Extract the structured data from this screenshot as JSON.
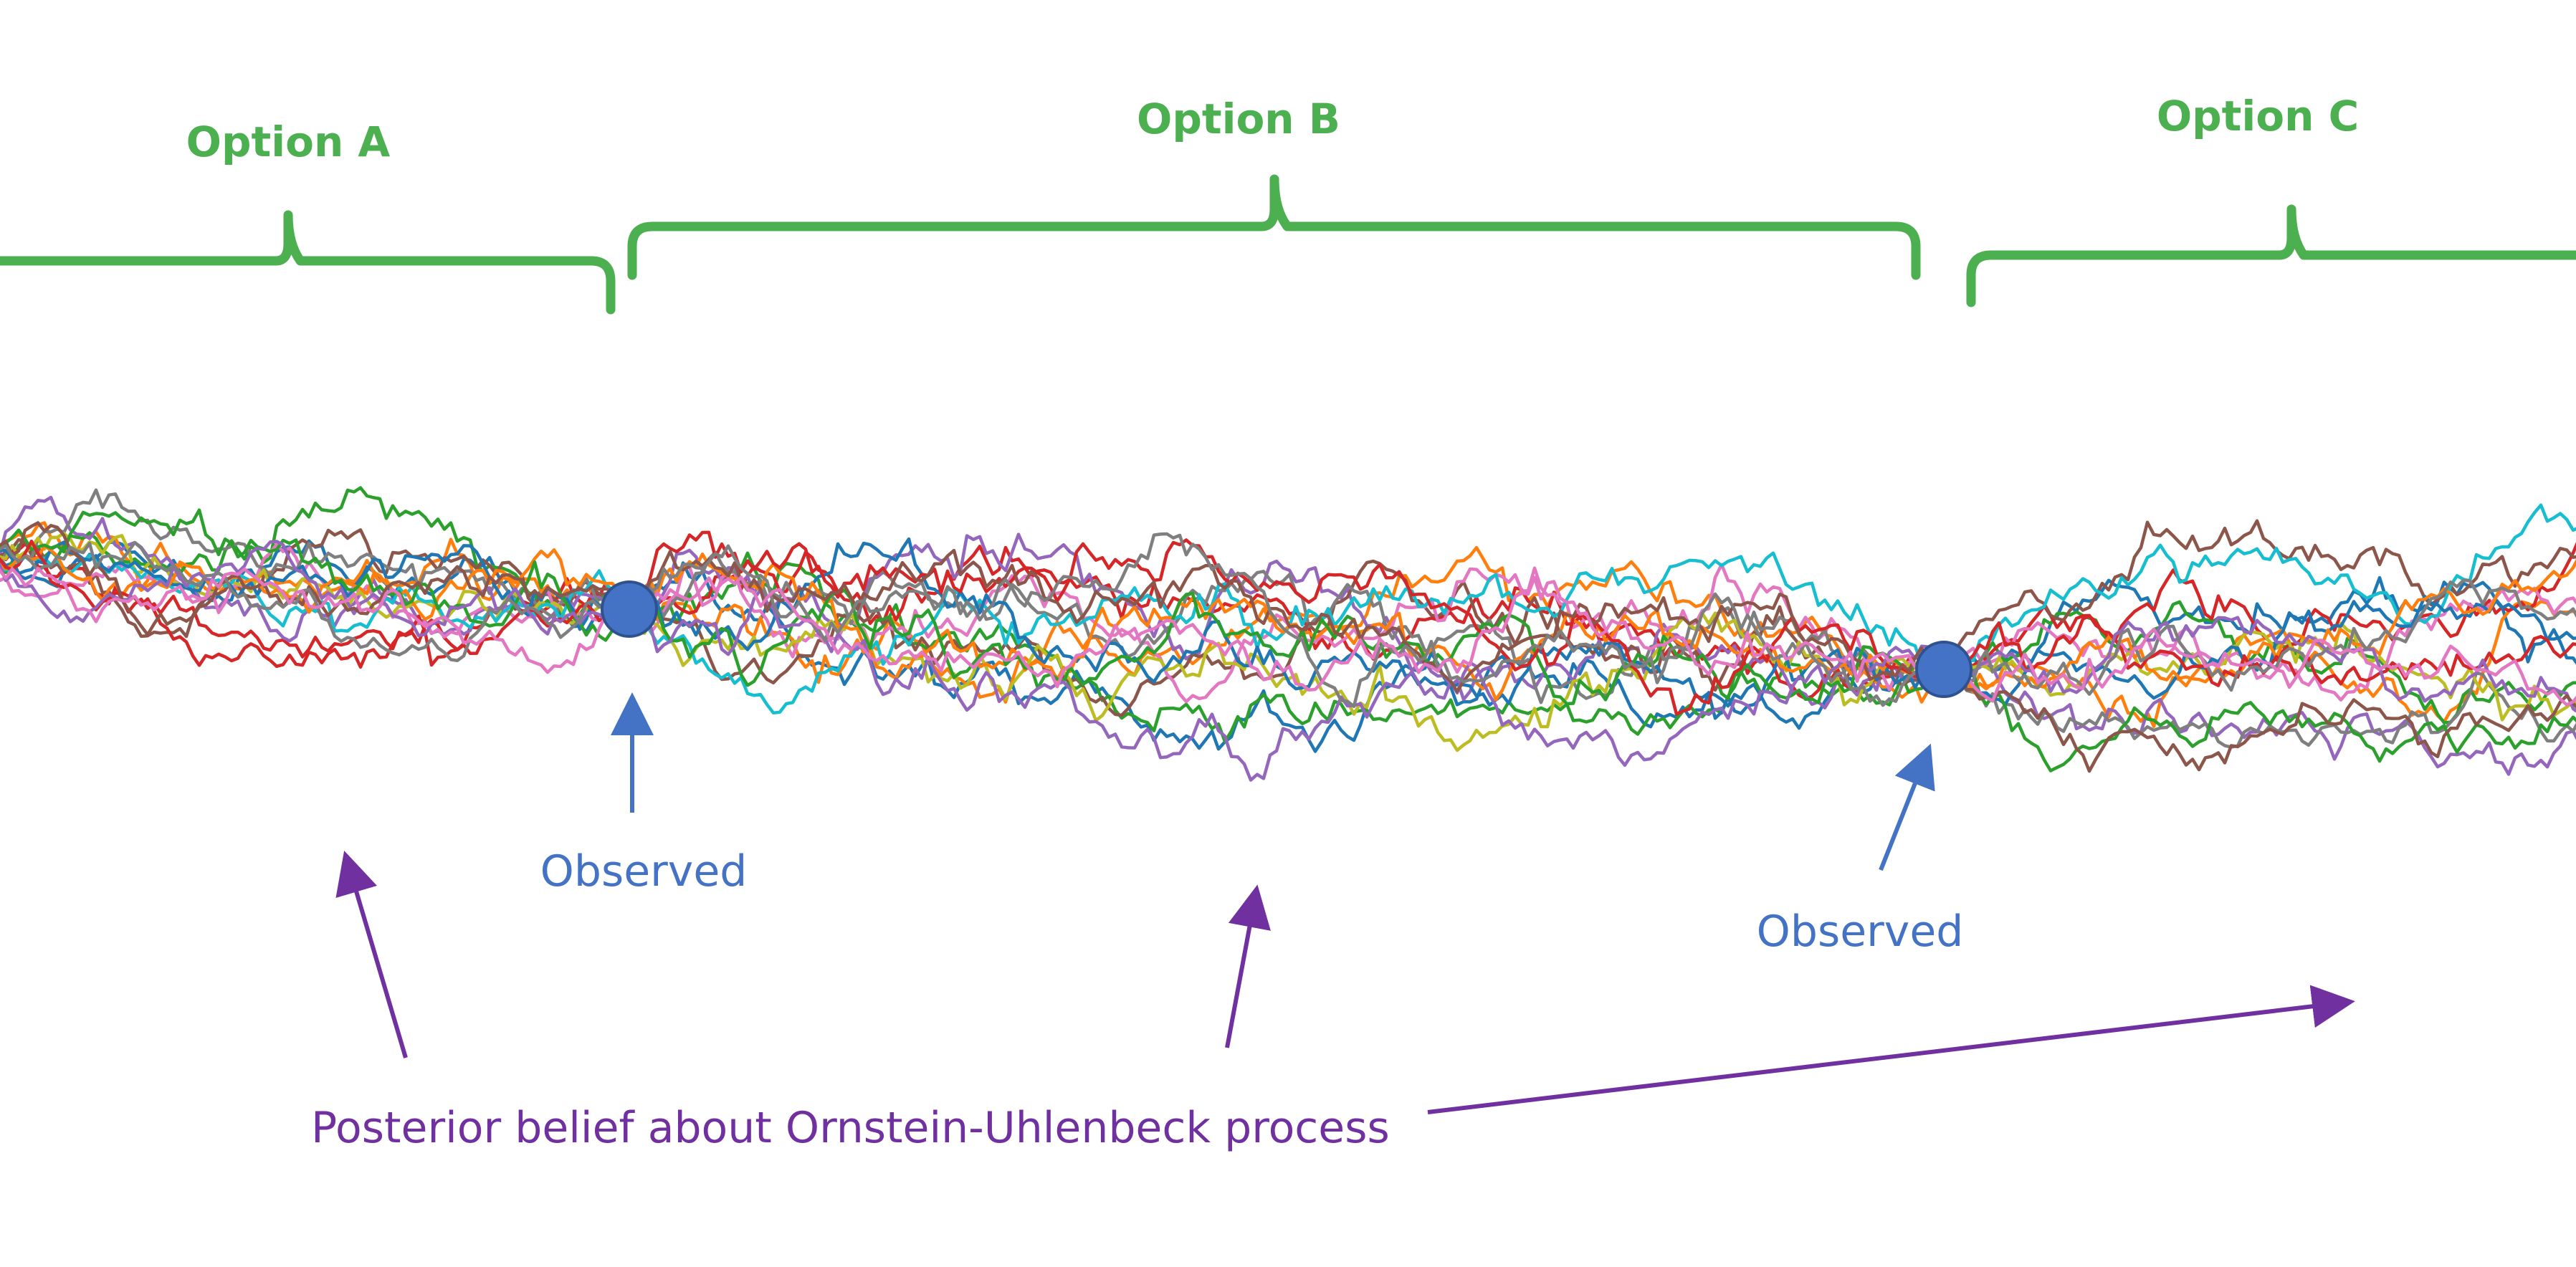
{
  "options": [
    {
      "label": "Option A"
    },
    {
      "label": "Option B"
    },
    {
      "label": "Option C"
    }
  ],
  "observed_labels": [
    "Observed",
    "Observed"
  ],
  "caption": "Posterior belief about Ornstein-Uhlenbeck process",
  "colors": {
    "bracket": "#4caf50",
    "observed": "#4472c4",
    "caption": "#7030a0",
    "paths": [
      "#1f77b4",
      "#ff7f0e",
      "#2ca02c",
      "#d62728",
      "#9467bd",
      "#8c564b",
      "#e377c2",
      "#7f7f7f",
      "#bcbd22",
      "#17becf",
      "#1f77b4",
      "#ff7f0e",
      "#2ca02c",
      "#d62728",
      "#9467bd",
      "#8c564b",
      "#7f7f7f",
      "#e377c2"
    ]
  },
  "paths_count": 18
}
